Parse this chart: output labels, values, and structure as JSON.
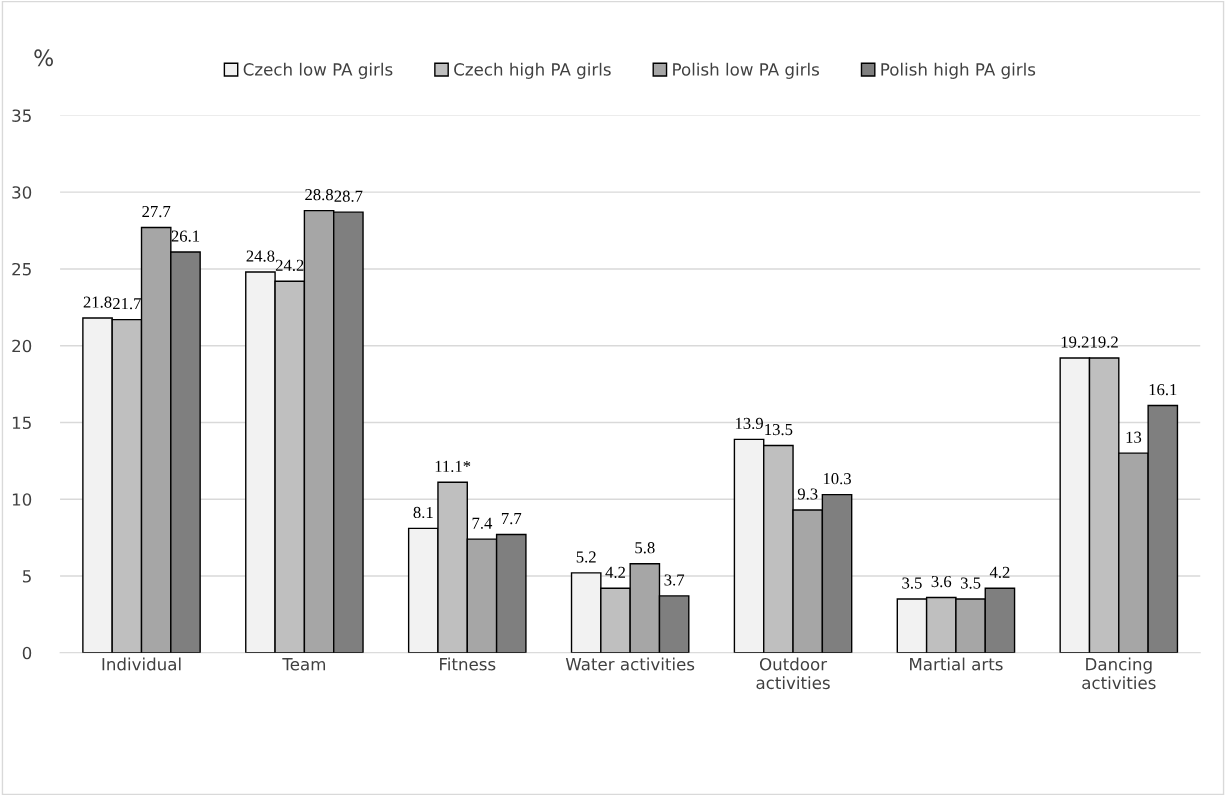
{
  "chart_data": {
    "type": "bar",
    "ylabel": "%",
    "categories": [
      "Individual",
      "Team",
      "Fitness",
      "Water activities",
      "Outdoor\nactivities",
      "Martial arts",
      "Dancing\nactivities"
    ],
    "series": [
      {
        "name": "Czech low PA girls",
        "color": "#f2f2f2",
        "values": [
          21.8,
          24.8,
          8.1,
          5.2,
          13.9,
          3.5,
          19.2
        ],
        "value_labels": [
          "21.8",
          "24.8",
          "8.1",
          "5.2",
          "13.9",
          "3.5",
          "19.2"
        ]
      },
      {
        "name": "Czech high PA girls",
        "color": "#bfbfbf",
        "values": [
          21.7,
          24.2,
          11.1,
          4.2,
          13.5,
          3.6,
          19.2
        ],
        "value_labels": [
          "21.7",
          "24.2",
          "11.1*",
          "4.2",
          "13.5",
          "3.6",
          "19.2"
        ]
      },
      {
        "name": "Polish low PA girls",
        "color": "#a6a6a6",
        "values": [
          27.7,
          28.8,
          7.4,
          5.8,
          9.3,
          3.5,
          13
        ],
        "value_labels": [
          "27.7",
          "28.8",
          "7.4",
          "5.8",
          "9.3",
          "3.5",
          "13"
        ]
      },
      {
        "name": "Polish high PA girls",
        "color": "#7f7f7f",
        "values": [
          26.1,
          28.7,
          7.7,
          3.7,
          10.3,
          4.2,
          16.1
        ],
        "value_labels": [
          "26.1",
          "28.7",
          "7.7",
          "3.7",
          "10.3",
          "4.2",
          "16.1"
        ]
      }
    ],
    "ylim": [
      0,
      35
    ],
    "yticks": [
      0,
      5,
      10,
      15,
      20,
      25,
      30,
      35
    ],
    "grid": "y",
    "legend": "top"
  }
}
